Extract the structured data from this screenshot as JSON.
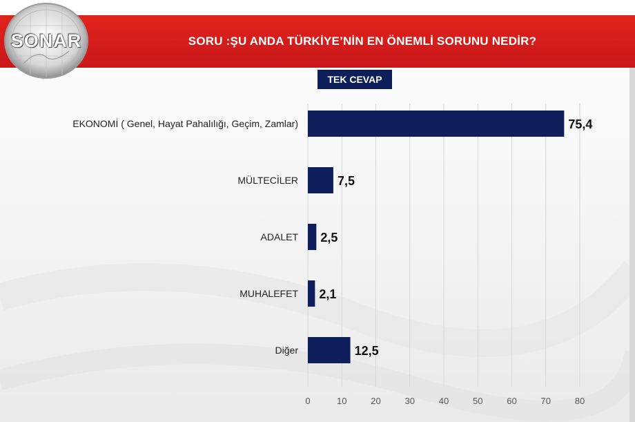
{
  "header": {
    "question": "SORU :ŞU ANDA TÜRKİYE’NİN EN ÖNEMLİ SORUNU NEDİR?",
    "logo_text": "SONAR",
    "badge": "TEK CEVAP"
  },
  "colors": {
    "banner": "#d81f1b",
    "bar": "#0f1f5c",
    "badge": "#0f1f5c"
  },
  "chart_data": {
    "type": "bar",
    "orientation": "horizontal",
    "categories": [
      "EKONOMİ ( Genel, Hayat Pahalılığı, Geçim, Zamlar)",
      "MÜLTECİLER",
      "ADALET",
      "MUHALEFET",
      "Diğer"
    ],
    "values": [
      75.4,
      7.5,
      2.5,
      2.1,
      12.5
    ],
    "value_labels": [
      "75,4",
      "7,5",
      "2,5",
      "2,1",
      "12,5"
    ],
    "xticks": [
      0,
      10,
      20,
      30,
      40,
      50,
      60,
      70,
      80
    ],
    "xlim": [
      0,
      80
    ],
    "grid": true,
    "title": "",
    "xlabel": "",
    "ylabel": ""
  }
}
